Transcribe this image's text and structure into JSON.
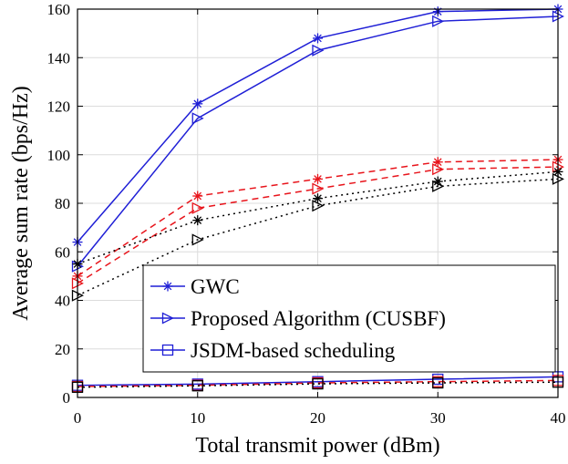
{
  "chart_data": {
    "type": "line",
    "title": "",
    "xlabel": "Total transmit power (dBm)",
    "ylabel": "Average sum rate (bps/Hz)",
    "xlim": [
      0,
      40
    ],
    "ylim": [
      0,
      160
    ],
    "xticks": [
      0,
      10,
      20,
      30,
      40
    ],
    "yticks": [
      0,
      20,
      40,
      60,
      80,
      100,
      120,
      140,
      160
    ],
    "xtick_labels": [
      "0",
      "10",
      "20",
      "30",
      "40"
    ],
    "ytick_labels": [
      "0",
      "20",
      "40",
      "60",
      "80",
      "100",
      "120",
      "140",
      "160"
    ],
    "grid": true,
    "legend_position": "bottom-right",
    "legend": [
      {
        "label": "GWC",
        "color": "#1f1fd6",
        "line": "solid",
        "marker": "asterisk"
      },
      {
        "label": "Proposed Algorithm (CUSBF)",
        "color": "#1f1fd6",
        "line": "solid",
        "marker": "triangle-right"
      },
      {
        "label": "JSDM-based scheduling",
        "color": "#1f1fd6",
        "line": "solid",
        "marker": "square"
      }
    ],
    "x": [
      0,
      10,
      20,
      30,
      40
    ],
    "series": [
      {
        "color": "#1f1fd6",
        "line": "solid",
        "marker": "asterisk",
        "values": [
          64,
          121,
          148,
          159,
          160
        ]
      },
      {
        "color": "#1f1fd6",
        "line": "solid",
        "marker": "triangle-right",
        "values": [
          54,
          115,
          143,
          155,
          157
        ]
      },
      {
        "color": "#e8141b",
        "line": "dashed",
        "marker": "asterisk",
        "values": [
          50,
          83,
          90,
          97,
          98
        ]
      },
      {
        "color": "#e8141b",
        "line": "dashed",
        "marker": "triangle-right",
        "values": [
          47,
          78,
          86,
          94,
          95
        ]
      },
      {
        "color": "#000000",
        "line": "dotted",
        "marker": "asterisk",
        "values": [
          55,
          73,
          82,
          89,
          93
        ]
      },
      {
        "color": "#000000",
        "line": "dotted",
        "marker": "triangle-right",
        "values": [
          42,
          65,
          79,
          87,
          90
        ]
      },
      {
        "color": "#1f1fd6",
        "line": "solid",
        "marker": "square",
        "values": [
          5,
          5.5,
          6.5,
          7.5,
          8.5
        ]
      },
      {
        "color": "#e8141b",
        "line": "dashed",
        "marker": "square",
        "values": [
          4.5,
          5.0,
          6.0,
          6.5,
          7.0
        ]
      },
      {
        "color": "#000000",
        "line": "dotted",
        "marker": "square",
        "values": [
          4.2,
          4.8,
          5.6,
          6.0,
          6.3
        ]
      }
    ]
  }
}
